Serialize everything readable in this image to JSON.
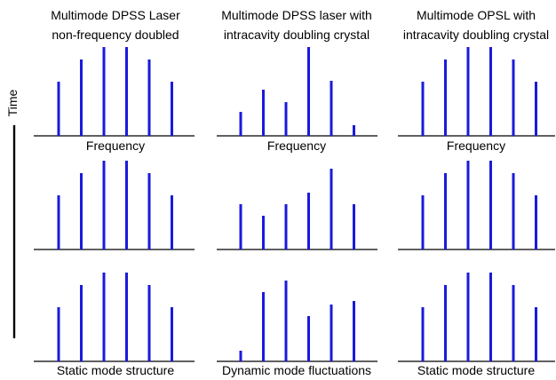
{
  "columns": [
    {
      "title_line1": "Multimode DPSS Laser",
      "title_line2": "non-frequency doubled",
      "caption": "Static mode structure"
    },
    {
      "title_line1": "Multimode DPSS laser with",
      "title_line2": "intracavity doubling crystal",
      "caption": "Dynamic mode fluctuations"
    },
    {
      "title_line1": "Multimode OPSL with",
      "title_line2": "intracavity doubling crystal",
      "caption": "Static mode structure"
    }
  ],
  "axis_label": "Frequency",
  "time_label": "Time",
  "colors": {
    "mode_line": "#1a1adc",
    "baseline": "#000000"
  },
  "mode_heights": [
    [
      [
        0.61,
        0.86,
        1.0,
        1.0,
        0.86,
        0.61
      ],
      [
        0.27,
        0.52,
        0.38,
        1.0,
        0.62,
        0.12
      ],
      [
        0.61,
        0.86,
        1.0,
        1.0,
        0.86,
        0.61
      ]
    ],
    [
      [
        0.61,
        0.86,
        1.0,
        1.0,
        0.86,
        0.61
      ],
      [
        0.51,
        0.38,
        0.51,
        0.64,
        0.91,
        0.51
      ],
      [
        0.61,
        0.86,
        1.0,
        1.0,
        0.86,
        0.61
      ]
    ],
    [
      [
        0.61,
        0.86,
        1.0,
        1.0,
        0.86,
        0.61
      ],
      [
        0.12,
        0.78,
        0.91,
        0.51,
        0.64,
        0.68
      ],
      [
        0.61,
        0.86,
        1.0,
        1.0,
        0.86,
        0.61
      ]
    ]
  ]
}
